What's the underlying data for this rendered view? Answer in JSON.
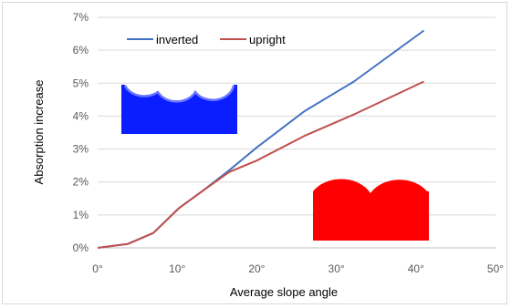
{
  "chart_data": {
    "type": "line",
    "xlabel": "Average slope angle",
    "ylabel": "Absorption increase",
    "xlim": [
      0,
      50
    ],
    "ylim": [
      0,
      7
    ],
    "x_ticks": [
      "0°",
      "10°",
      "20°",
      "30°",
      "40°",
      "50°"
    ],
    "y_ticks": [
      "0%",
      "1%",
      "2%",
      "3%",
      "4%",
      "5%",
      "6%",
      "7%"
    ],
    "grid": "horizontal",
    "legend_position": "top-left",
    "series": [
      {
        "name": "inverted",
        "color": "#4472c4",
        "x": [
          0,
          3.8,
          7,
          10.2,
          13.3,
          16.5,
          20,
          26,
          32.2,
          41
        ],
        "y": [
          0,
          0.12,
          0.45,
          1.2,
          1.75,
          2.35,
          3.05,
          4.15,
          5.05,
          6.6
        ]
      },
      {
        "name": "upright",
        "color": "#c0504d",
        "x": [
          0,
          3.8,
          7,
          10.2,
          13.3,
          16.5,
          20,
          26,
          32.2,
          41
        ],
        "y": [
          0,
          0.12,
          0.45,
          1.2,
          1.75,
          2.3,
          2.65,
          3.4,
          4.05,
          5.05
        ]
      }
    ],
    "illustrations": [
      {
        "name": "inverted-profile",
        "color": "#0a1eff"
      },
      {
        "name": "upright-profile",
        "color": "#ff0000"
      }
    ]
  }
}
